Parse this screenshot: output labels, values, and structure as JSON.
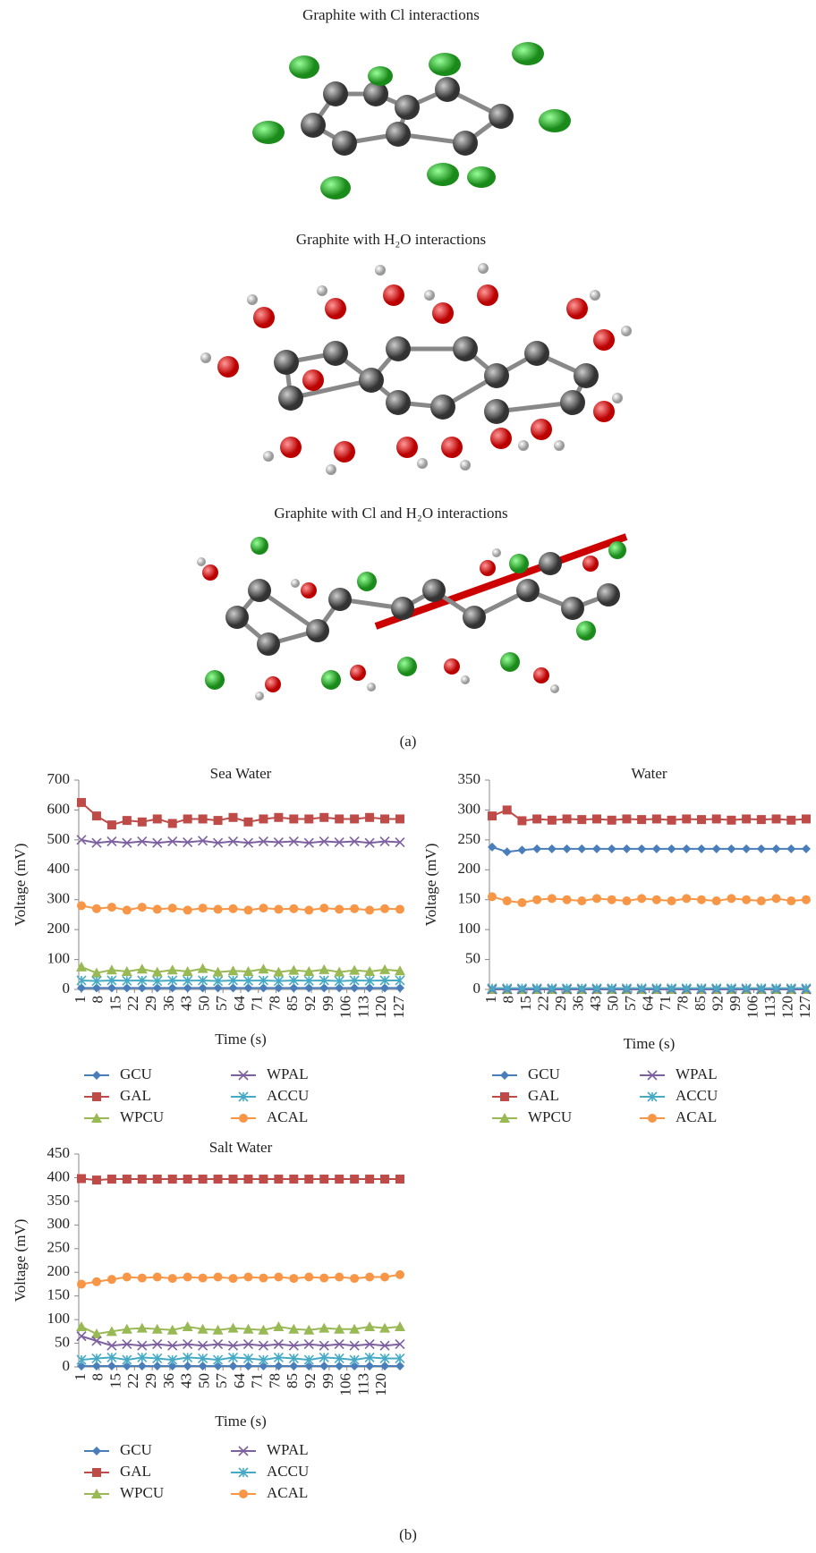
{
  "figure": {
    "molecule_titles": [
      "Graphite with Cl interactions",
      "Graphite with H₂O interactions",
      "Graphite with Cl and H₂O interactions"
    ],
    "panel_labels": [
      "(a)",
      "(b)"
    ]
  },
  "chart_data": [
    {
      "type": "line",
      "title": "Sea Water",
      "x_label": "Time (s)",
      "y_label": "Voltage (mV)",
      "x": [
        1,
        7,
        13,
        19,
        25,
        31,
        37,
        43,
        49,
        55,
        61,
        67,
        73,
        79,
        85,
        91,
        97,
        103,
        109,
        115,
        121,
        127
      ],
      "xlim": [
        1,
        127
      ],
      "xticks": [
        1,
        8,
        15,
        22,
        29,
        36,
        43,
        50,
        57,
        64,
        71,
        78,
        85,
        92,
        99,
        106,
        113,
        120,
        127
      ],
      "ylim": [
        0,
        700
      ],
      "yticks": [
        0,
        100,
        200,
        300,
        400,
        500,
        600,
        700
      ],
      "series": [
        {
          "name": "GCU",
          "color": "#4a7ebb",
          "marker": "diamond",
          "values": [
            5,
            5,
            5,
            5,
            5,
            5,
            5,
            5,
            5,
            5,
            5,
            5,
            5,
            5,
            5,
            5,
            5,
            5,
            5,
            5,
            5,
            5
          ]
        },
        {
          "name": "GAL",
          "color": "#be4b48",
          "marker": "square",
          "values": [
            625,
            580,
            550,
            565,
            560,
            570,
            555,
            570,
            570,
            565,
            575,
            560,
            570,
            575,
            570,
            570,
            575,
            570,
            570,
            575,
            570,
            570
          ]
        },
        {
          "name": "WPCU",
          "color": "#98b954",
          "marker": "triangle",
          "values": [
            75,
            55,
            65,
            60,
            68,
            58,
            65,
            60,
            70,
            58,
            62,
            60,
            68,
            58,
            64,
            60,
            66,
            58,
            64,
            60,
            66,
            62
          ]
        },
        {
          "name": "WPAL",
          "color": "#7d60a0",
          "marker": "x",
          "values": [
            500,
            490,
            495,
            490,
            495,
            490,
            495,
            492,
            497,
            490,
            495,
            490,
            495,
            492,
            495,
            490,
            495,
            492,
            495,
            490,
            495,
            492
          ]
        },
        {
          "name": "ACCU",
          "color": "#46aac5",
          "marker": "asterisk",
          "values": [
            30,
            28,
            30,
            29,
            30,
            28,
            30,
            29,
            30,
            28,
            30,
            29,
            30,
            28,
            30,
            29,
            30,
            28,
            30,
            29,
            30,
            30
          ]
        },
        {
          "name": "ACAL",
          "color": "#f79646",
          "marker": "circle",
          "values": [
            280,
            270,
            275,
            265,
            275,
            268,
            272,
            265,
            272,
            268,
            270,
            265,
            272,
            268,
            270,
            265,
            272,
            268,
            270,
            265,
            270,
            268
          ]
        }
      ]
    },
    {
      "type": "line",
      "title": "Water",
      "x_label": "Time (s)",
      "y_label": "Voltage (mV)",
      "x": [
        1,
        7,
        13,
        19,
        25,
        31,
        37,
        43,
        49,
        55,
        61,
        67,
        73,
        79,
        85,
        91,
        97,
        103,
        109,
        115,
        121,
        127
      ],
      "xlim": [
        1,
        127
      ],
      "xticks": [
        1,
        8,
        15,
        22,
        29,
        36,
        43,
        50,
        57,
        64,
        71,
        78,
        85,
        92,
        99,
        106,
        113,
        120,
        127
      ],
      "ylim": [
        0,
        350
      ],
      "yticks": [
        0,
        50,
        100,
        150,
        200,
        250,
        300,
        350
      ],
      "series": [
        {
          "name": "GCU",
          "color": "#4a7ebb",
          "marker": "diamond",
          "values": [
            238,
            230,
            233,
            235,
            235,
            235,
            235,
            235,
            235,
            235,
            235,
            235,
            235,
            235,
            235,
            235,
            235,
            235,
            235,
            235,
            235,
            235
          ]
        },
        {
          "name": "GAL",
          "color": "#be4b48",
          "marker": "square",
          "values": [
            290,
            300,
            282,
            285,
            283,
            285,
            284,
            285,
            283,
            285,
            284,
            285,
            283,
            285,
            284,
            285,
            283,
            285,
            284,
            285,
            283,
            285
          ]
        },
        {
          "name": "WPCU",
          "color": "#98b954",
          "marker": "triangle",
          "values": [
            0,
            0,
            0,
            0,
            0,
            0,
            0,
            0,
            0,
            0,
            0,
            0,
            0,
            0,
            0,
            0,
            0,
            0,
            0,
            0,
            0,
            0
          ]
        },
        {
          "name": "WPAL",
          "color": "#7d60a0",
          "marker": "x",
          "values": [
            0,
            0,
            0,
            0,
            0,
            0,
            0,
            0,
            0,
            0,
            0,
            0,
            0,
            0,
            0,
            0,
            0,
            0,
            0,
            0,
            0,
            0
          ]
        },
        {
          "name": "ACCU",
          "color": "#46aac5",
          "marker": "asterisk",
          "values": [
            2,
            2,
            2,
            2,
            2,
            2,
            2,
            2,
            2,
            2,
            2,
            2,
            2,
            2,
            2,
            2,
            2,
            2,
            2,
            2,
            2,
            2
          ]
        },
        {
          "name": "ACAL",
          "color": "#f79646",
          "marker": "circle",
          "values": [
            155,
            148,
            145,
            150,
            152,
            150,
            148,
            152,
            150,
            148,
            152,
            150,
            148,
            152,
            150,
            148,
            152,
            150,
            148,
            152,
            148,
            150
          ]
        }
      ]
    },
    {
      "type": "line",
      "title": "Salt Water",
      "x_label": "Time (s)",
      "y_label": "Voltage (mV)",
      "x": [
        1,
        7,
        13,
        19,
        25,
        31,
        37,
        43,
        49,
        55,
        61,
        67,
        73,
        79,
        85,
        91,
        97,
        103,
        109,
        115,
        121,
        127
      ],
      "xlim": [
        1,
        127
      ],
      "xticks": [
        1,
        8,
        15,
        22,
        29,
        36,
        43,
        50,
        57,
        64,
        71,
        78,
        85,
        92,
        99,
        106,
        113,
        120
      ],
      "ylim": [
        0,
        450
      ],
      "yticks": [
        0,
        50,
        100,
        150,
        200,
        250,
        300,
        350,
        400,
        450
      ],
      "series": [
        {
          "name": "GCU",
          "color": "#4a7ebb",
          "marker": "diamond",
          "values": [
            2,
            2,
            2,
            2,
            2,
            2,
            2,
            2,
            2,
            2,
            2,
            2,
            2,
            2,
            2,
            2,
            2,
            2,
            2,
            2,
            2,
            2
          ]
        },
        {
          "name": "GAL",
          "color": "#be4b48",
          "marker": "square",
          "values": [
            398,
            395,
            397,
            397,
            397,
            397,
            397,
            397,
            397,
            397,
            397,
            397,
            397,
            397,
            397,
            397,
            397,
            397,
            397,
            397,
            397,
            397
          ]
        },
        {
          "name": "WPCU",
          "color": "#98b954",
          "marker": "triangle",
          "values": [
            85,
            70,
            75,
            80,
            82,
            80,
            78,
            85,
            80,
            78,
            82,
            80,
            78,
            85,
            80,
            78,
            82,
            80,
            80,
            85,
            82,
            85
          ]
        },
        {
          "name": "WPAL",
          "color": "#7d60a0",
          "marker": "x",
          "values": [
            65,
            55,
            45,
            48,
            45,
            48,
            45,
            48,
            45,
            48,
            45,
            48,
            45,
            48,
            45,
            48,
            45,
            48,
            45,
            48,
            45,
            48
          ]
        },
        {
          "name": "ACCU",
          "color": "#46aac5",
          "marker": "asterisk",
          "values": [
            15,
            18,
            20,
            15,
            20,
            18,
            15,
            20,
            18,
            15,
            20,
            18,
            15,
            20,
            18,
            15,
            20,
            18,
            15,
            20,
            18,
            18
          ]
        },
        {
          "name": "ACAL",
          "color": "#f79646",
          "marker": "circle",
          "values": [
            175,
            180,
            185,
            190,
            188,
            190,
            187,
            190,
            188,
            190,
            187,
            190,
            188,
            190,
            187,
            190,
            188,
            190,
            187,
            190,
            190,
            195
          ]
        }
      ]
    }
  ]
}
